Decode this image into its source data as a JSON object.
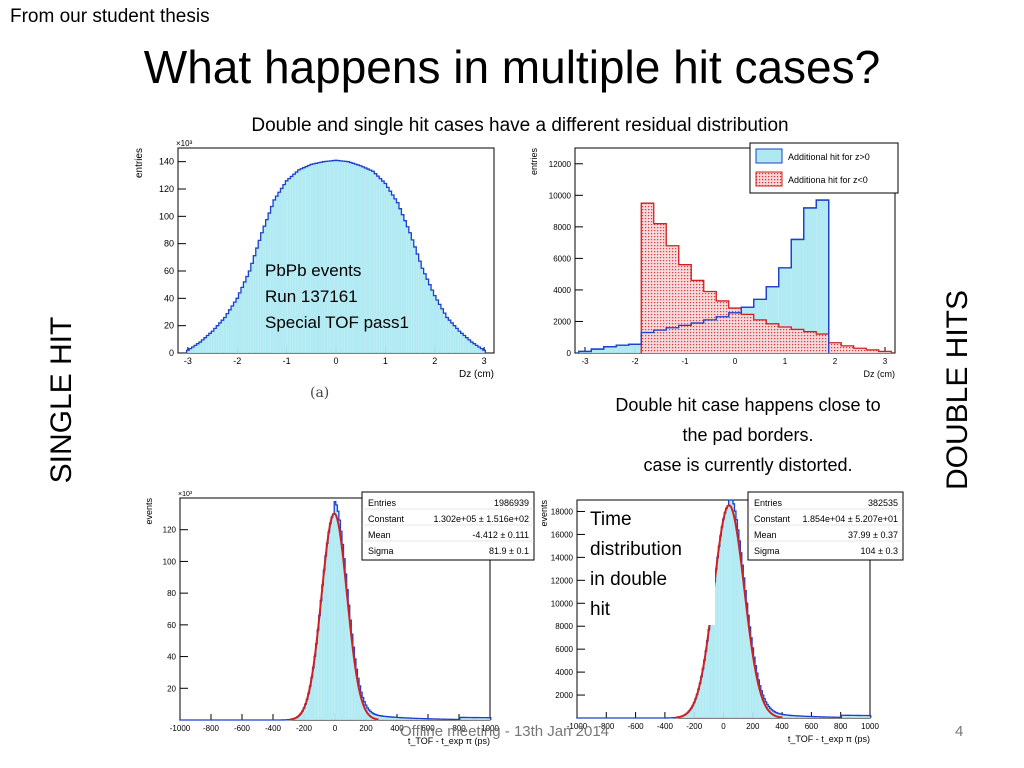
{
  "slide": {
    "note": "From our student thesis",
    "title": "What happens in multiple hit cases?",
    "subtitle": "Double and single hit cases have a different residual distribution",
    "single_hit_label": "SINGLE HIT",
    "double_hits_label": "DOUBLE HITS",
    "double_hit_caption": [
      "Double hit case happens close to",
      "the pad borders.",
      "case is currently distorted."
    ],
    "time_note": [
      "Time",
      "distribution",
      "in double",
      "hit"
    ],
    "footer": "Offline meeting - 13th Jan 2014",
    "page_number": "4",
    "figure_label": "(a)"
  },
  "chart_data": [
    {
      "type": "bar",
      "id": "single-hit-dz",
      "xlabel": "Dz (cm)",
      "ylabel": "entries",
      "y_multiplier": "×10³",
      "xlim": [
        -3.2,
        3.2
      ],
      "ylim": [
        0,
        150
      ],
      "xticks": [
        -3,
        -2,
        -1,
        0,
        1,
        2,
        3
      ],
      "yticks": [
        0,
        20,
        40,
        60,
        80,
        100,
        120,
        140
      ],
      "fill": "#aee9f2",
      "stroke": "#1d3fd0",
      "annotation": [
        "PbPb events",
        "Run 137161",
        "Special TOF pass1"
      ],
      "x": [
        -3.0,
        -2.75,
        -2.5,
        -2.25,
        -2.0,
        -1.75,
        -1.5,
        -1.25,
        -1.0,
        -0.75,
        -0.5,
        -0.25,
        0.0,
        0.25,
        0.5,
        0.75,
        1.0,
        1.25,
        1.5,
        1.75,
        2.0,
        2.25,
        2.5,
        2.75,
        3.0
      ],
      "values": [
        2,
        8,
        16,
        26,
        40,
        60,
        88,
        112,
        126,
        134,
        138,
        140,
        141,
        140,
        137,
        133,
        124,
        110,
        88,
        62,
        42,
        26,
        16,
        8,
        2
      ]
    },
    {
      "type": "bar",
      "id": "double-hit-dz",
      "xlabel": "Dz (cm)",
      "ylabel": "entries",
      "xlim": [
        -3.2,
        3.2
      ],
      "ylim": [
        0,
        13000
      ],
      "xticks": [
        -3,
        -2,
        -1,
        0,
        1,
        2,
        3
      ],
      "yticks": [
        0,
        2000,
        4000,
        6000,
        8000,
        10000,
        12000
      ],
      "legend_position": "top-right",
      "series": [
        {
          "name": "Additional hit for z>0",
          "fill": "#aee9f2",
          "stroke": "#1d3fd0",
          "x": [
            -3.0,
            -2.75,
            -2.5,
            -2.25,
            -2.0,
            -1.75,
            -1.5,
            -1.25,
            -1.0,
            -0.75,
            -0.5,
            -0.25,
            0.0,
            0.25,
            0.5,
            0.75,
            1.0,
            1.25,
            1.5,
            1.75
          ],
          "values": [
            100,
            250,
            400,
            500,
            550,
            1300,
            1450,
            1600,
            1750,
            1900,
            2100,
            2300,
            2550,
            2900,
            3400,
            4200,
            5400,
            7200,
            9200,
            9700
          ]
        },
        {
          "name": "Additiona hit for z<0",
          "fill": "#f6c0c4",
          "stroke": "#d02020",
          "x": [
            -1.75,
            -1.5,
            -1.25,
            -1.0,
            -0.75,
            -0.5,
            -0.25,
            0.0,
            0.25,
            0.5,
            0.75,
            1.0,
            1.25,
            1.5,
            1.75,
            2.0,
            2.25,
            2.5,
            2.75,
            3.0
          ],
          "values": [
            9500,
            8200,
            6800,
            5600,
            4600,
            3900,
            3300,
            2850,
            2450,
            2100,
            1850,
            1650,
            1500,
            1350,
            1200,
            650,
            450,
            300,
            200,
            100
          ]
        }
      ]
    },
    {
      "type": "bar",
      "id": "single-hit-time",
      "xlabel": "t_TOF - t_exp π (ps)",
      "ylabel": "events",
      "y_multiplier": "×10³",
      "xlim": [
        -1000,
        1000
      ],
      "ylim": [
        0,
        140
      ],
      "xticks": [
        -1000,
        -800,
        -600,
        -400,
        -200,
        0,
        200,
        400,
        600,
        800,
        1000
      ],
      "yticks": [
        20,
        40,
        60,
        80,
        100,
        120
      ],
      "fill": "#aee9f2",
      "stroke": "#1d3fd0",
      "fit_color": "#d02020",
      "fit": {
        "amplitude": 130.2,
        "mean": -4.412,
        "sigma": 81.9
      },
      "stats": [
        [
          "Entries",
          "1986939"
        ],
        [
          "Constant",
          "1.302e+05 ± 1.516e+02"
        ],
        [
          "Mean",
          "-4.412 ± 0.111"
        ],
        [
          "Sigma",
          "81.9 ± 0.1"
        ]
      ]
    },
    {
      "type": "bar",
      "id": "double-hit-time",
      "xlabel": "t_TOF - t_exp π (ps)",
      "ylabel": "events",
      "xlim": [
        -1000,
        1000
      ],
      "ylim": [
        0,
        19000
      ],
      "xticks": [
        -1000,
        -800,
        -600,
        -400,
        -200,
        0,
        200,
        400,
        600,
        800,
        1000
      ],
      "yticks": [
        2000,
        4000,
        6000,
        8000,
        10000,
        12000,
        14000,
        16000,
        18000
      ],
      "fill": "#aee9f2",
      "stroke": "#1d3fd0",
      "fit_color": "#d02020",
      "fit": {
        "amplitude": 18540,
        "mean": 37.99,
        "sigma": 104
      },
      "stats": [
        [
          "Entries",
          "382535"
        ],
        [
          "Constant",
          "1.854e+04 ± 5.207e+01"
        ],
        [
          "Mean",
          "37.99 ± 0.37"
        ],
        [
          "Sigma",
          "104 ± 0.3"
        ]
      ]
    }
  ]
}
